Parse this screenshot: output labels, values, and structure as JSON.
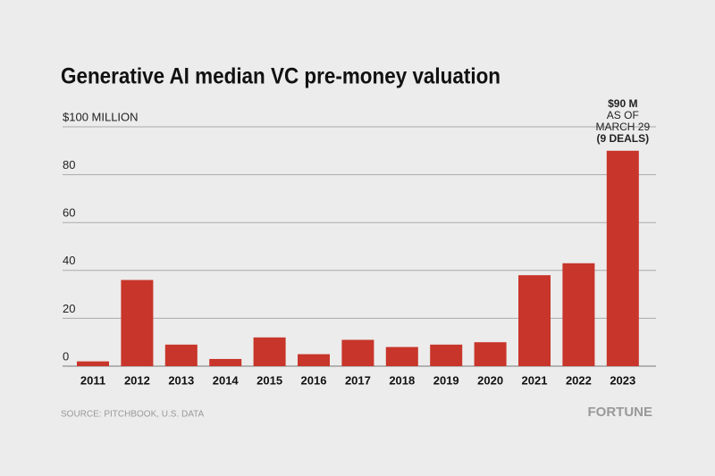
{
  "chart_data": {
    "type": "bar",
    "title": "Generative AI median VC pre-money valuation",
    "categories": [
      "2011",
      "2012",
      "2013",
      "2014",
      "2015",
      "2016",
      "2017",
      "2018",
      "2019",
      "2020",
      "2021",
      "2022",
      "2023"
    ],
    "values": [
      2,
      36,
      9,
      3,
      12,
      5,
      11,
      8,
      9,
      10,
      38,
      43,
      90
    ],
    "color": "#c8352a",
    "ylim": [
      0,
      100
    ],
    "yticks": [
      0,
      20,
      40,
      60,
      80,
      {
        "value": 100,
        "label": "$100 MILLION"
      }
    ],
    "grid": true,
    "annotation": [
      "$90 M",
      "AS OF",
      "MARCH 29",
      "(9 DEALS)"
    ],
    "source": "SOURCE: PITCHBOOK, U.S. DATA",
    "brand": "FORTUNE"
  }
}
